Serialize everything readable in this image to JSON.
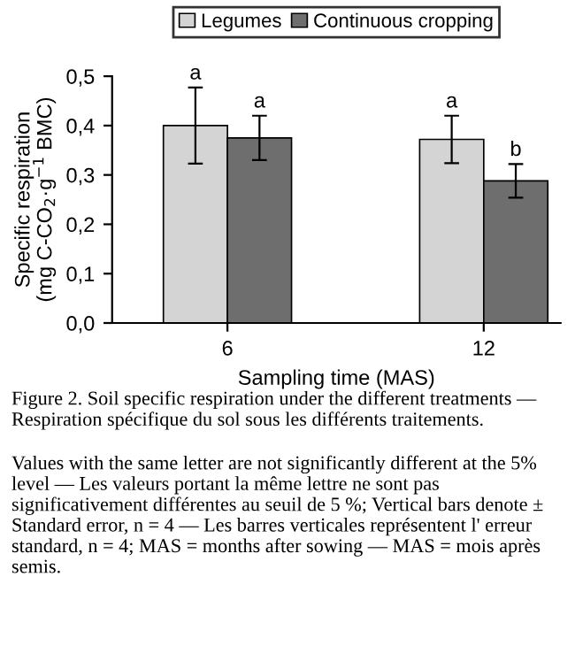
{
  "chart_data": {
    "type": "bar",
    "xlabel": "Sampling time (MAS)",
    "ylabel": "Specific respiration\n(mg C-CO$_{2}$·g$^{−1}$ BMC)",
    "categories": [
      "6",
      "12"
    ],
    "series": [
      {
        "name": "Legumes",
        "color": "#d4d4d4",
        "values": [
          0.4,
          0.372
        ],
        "errors": [
          0.077,
          0.048
        ]
      },
      {
        "name": "Continuous cropping",
        "color": "#6e6e6e",
        "values": [
          0.375,
          0.288
        ],
        "errors": [
          0.045,
          0.034
        ]
      }
    ],
    "ylim": [
      0,
      0.5
    ],
    "yticks": [
      {
        "value": 0,
        "label": "0,0"
      },
      {
        "value": 0.1,
        "label": "0,1"
      },
      {
        "value": 0.2,
        "label": "0,2"
      },
      {
        "value": 0.3,
        "label": "0,3"
      },
      {
        "value": 0.4,
        "label": "0,4"
      },
      {
        "value": 0.5,
        "label": "0,5"
      }
    ],
    "grid": false,
    "legend": "top",
    "annotations": [
      "a",
      "a",
      "a",
      "b",
      "Figure 2. Soil specific respiration under the different treatments — Respiration spécifique du sol sous les différents traitements.",
      "Values with the same letter are not significantly different at the 5% level — Les valeurs portant la même lettre ne sont pas significativement différentes au seuil de 5 %; Vertical bars denote ± Standard error, n = 4 — Les barres verticales représentent l' erreur standard, n = 4; MAS = months after sowing — MAS = mois après semis."
    ]
  }
}
